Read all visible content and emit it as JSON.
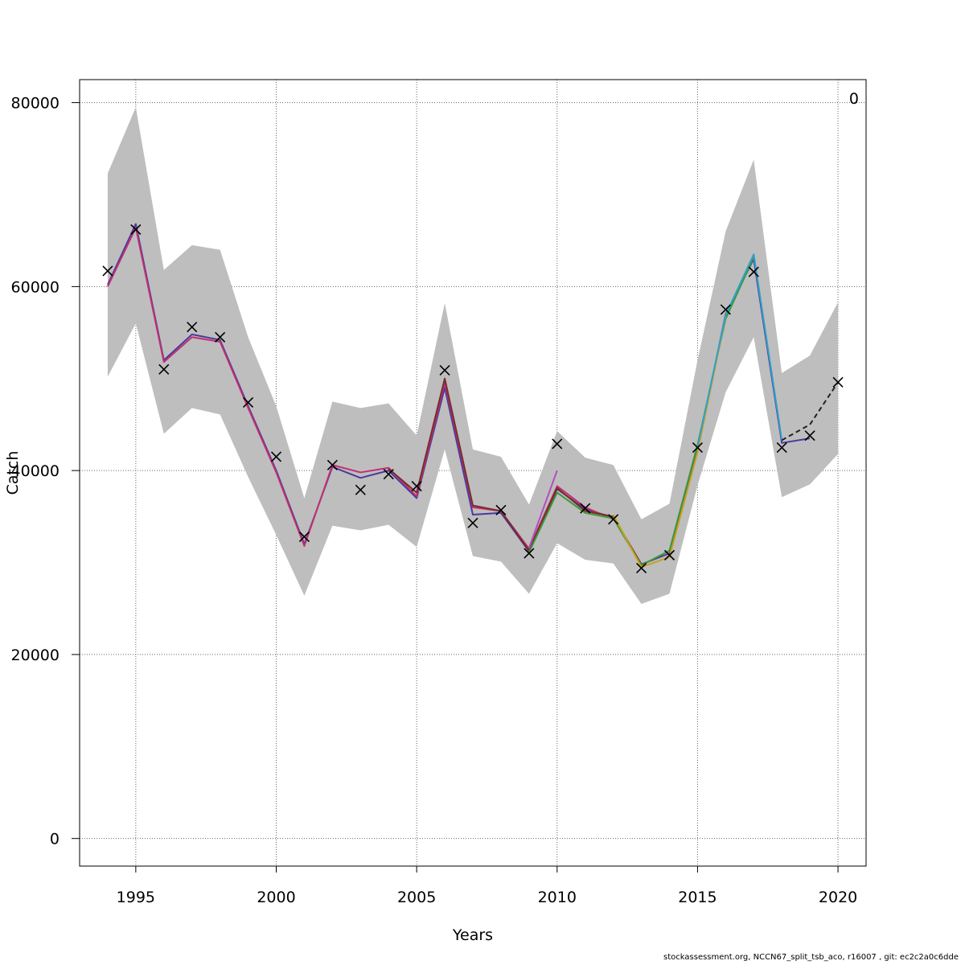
{
  "chart_data": {
    "type": "line",
    "title": "",
    "xlabel": "Years",
    "ylabel": "Catch",
    "corner_label": "0",
    "xlim": [
      1993,
      2021
    ],
    "ylim": [
      -3000,
      82500
    ],
    "x_ticks": [
      1995,
      2000,
      2005,
      2010,
      2015,
      2020
    ],
    "y_ticks": [
      0,
      20000,
      40000,
      60000,
      80000
    ],
    "grid": true,
    "band_color": "#bebebe",
    "observed_marker": "x",
    "uncertainty_band": {
      "x": [
        1994,
        1995,
        1996,
        1997,
        1998,
        1999,
        2000,
        2001,
        2002,
        2003,
        2004,
        2005,
        2006,
        2007,
        2008,
        2009,
        2010,
        2011,
        2012,
        2013,
        2014,
        2015,
        2016,
        2017,
        2018,
        2019,
        2020
      ],
      "upper": [
        72300,
        79500,
        61800,
        64500,
        64000,
        54500,
        47000,
        37000,
        47500,
        46800,
        47300,
        43800,
        58200,
        42300,
        41500,
        36300,
        44300,
        41400,
        40600,
        34700,
        36400,
        52000,
        66000,
        73800,
        50600,
        52500,
        58300
      ],
      "lower": [
        50200,
        56000,
        44000,
        46800,
        46100,
        39300,
        33000,
        26400,
        34000,
        33500,
        34100,
        31700,
        42300,
        30700,
        30100,
        26600,
        32100,
        30300,
        29900,
        25500,
        26600,
        38400,
        48500,
        54500,
        37100,
        38500,
        41800
      ]
    },
    "observed": {
      "x": [
        1994,
        1995,
        1996,
        1997,
        1998,
        1999,
        2000,
        2001,
        2002,
        2003,
        2004,
        2005,
        2006,
        2007,
        2008,
        2009,
        2010,
        2011,
        2012,
        2013,
        2014,
        2015,
        2016,
        2017,
        2018,
        2019,
        2020
      ],
      "y": [
        61700,
        66200,
        51000,
        55600,
        54500,
        47400,
        41500,
        32800,
        40600,
        37900,
        39600,
        38300,
        50900,
        34300,
        35700,
        31000,
        42900,
        35900,
        34700,
        29400,
        30800,
        42500,
        57500,
        61600,
        42500,
        43800,
        49600
      ]
    },
    "series": [
      {
        "color": "#4a3a9e",
        "x": [
          1994,
          1995,
          1996,
          1997,
          1998,
          1999,
          2000,
          2001,
          2002,
          2003,
          2004,
          2005,
          2006,
          2007,
          2008,
          2009,
          2010,
          2011,
          2012,
          2013,
          2014,
          2015,
          2016,
          2017,
          2018,
          2019
        ],
        "y": [
          60200,
          66800,
          52000,
          54800,
          54200,
          47000,
          40000,
          32000,
          40400,
          39200,
          40000,
          37000,
          49000,
          35200,
          35400,
          31200,
          38000,
          35800,
          34900,
          29800,
          31000,
          42300,
          57000,
          63000,
          43000,
          43500
        ]
      },
      {
        "color": "#c03070",
        "x": [
          1994,
          1995,
          1996,
          1997,
          1998,
          1999,
          2000,
          2001,
          2002,
          2003,
          2004,
          2005,
          2006,
          2007,
          2008,
          2009,
          2010,
          2011,
          2012
        ],
        "y": [
          60000,
          66400,
          51800,
          54500,
          54000,
          46800,
          39800,
          31800,
          40600,
          39800,
          40300,
          37200,
          49600,
          36000,
          35600,
          31500,
          38300,
          36000,
          34700
        ]
      },
      {
        "color": "#7a2b2b",
        "x": [
          2004,
          2005,
          2006,
          2007,
          2008,
          2009,
          2010,
          2011,
          2012,
          2013
        ],
        "y": [
          40200,
          37600,
          50000,
          36200,
          35600,
          31300,
          38100,
          35600,
          35000,
          29800
        ]
      },
      {
        "color": "#3a9a3a",
        "x": [
          2009,
          2010,
          2011,
          2012,
          2013,
          2014,
          2015,
          2016,
          2017
        ],
        "y": [
          31100,
          37600,
          35400,
          34800,
          29700,
          31300,
          42800,
          56500,
          63200
        ]
      },
      {
        "color": "#c8a020",
        "x": [
          2012,
          2013,
          2014,
          2015,
          2016
        ],
        "y": [
          35200,
          29500,
          30600,
          42000,
          56800
        ]
      },
      {
        "color": "#b050c0",
        "x": [
          2009,
          2010
        ],
        "y": [
          31600,
          40000
        ]
      },
      {
        "color": "#30a0c8",
        "x": [
          2015,
          2016,
          2017,
          2018
        ],
        "y": [
          42600,
          56900,
          63500,
          43300
        ]
      },
      {
        "color": "#222222",
        "dashed": true,
        "x": [
          2018,
          2019,
          2020
        ],
        "y": [
          43300,
          45000,
          49600
        ]
      }
    ]
  },
  "footer": "stockassessment.org, NCCN67_split_tsb_aco, r16007 , git: ec2c2a0c6dde"
}
